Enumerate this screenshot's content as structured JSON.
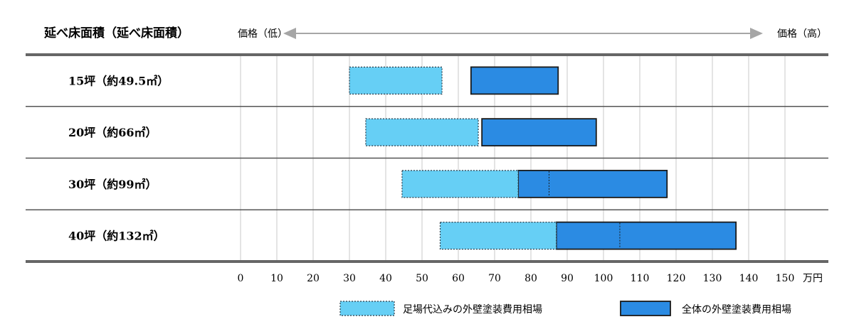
{
  "chart_data": {
    "type": "bar",
    "orientation": "horizontal-range",
    "header": {
      "row_title": "延べ床面積（延べ床面積）",
      "price_low": "価格（低）",
      "price_high": "価格（高）"
    },
    "x_unit": "万円",
    "xlim": [
      0,
      150
    ],
    "xticks": [
      0,
      10,
      20,
      30,
      40,
      50,
      60,
      70,
      80,
      90,
      100,
      110,
      120,
      130,
      140,
      150
    ],
    "grid": true,
    "legend_position": "bottom-right",
    "colors": {
      "scaffold_fill": "#66cff5",
      "total_fill": "#2b8be3",
      "border": "#1a1a1a",
      "rule": "#666666",
      "grid": "#c8c8c8",
      "arrow": "#a6a6a6"
    },
    "categories": [
      "15坪（約49.5㎡）",
      "20坪（約66㎡）",
      "30坪（約99㎡）",
      "40坪（約132㎡）"
    ],
    "series": [
      {
        "name": "足場代込みの外壁塗装費用相場",
        "style": "dotted-border",
        "ranges": [
          [
            30,
            55.5
          ],
          [
            34.5,
            65.5
          ],
          [
            44.5,
            76.5
          ],
          [
            55,
            87
          ]
        ]
      },
      {
        "name": "全体の外壁塗装費用相場",
        "style": "solid-border",
        "ranges": [
          [
            63.5,
            87.5
          ],
          [
            66.5,
            98
          ],
          [
            76.5,
            117.5
          ],
          [
            87,
            136.5
          ]
        ],
        "overlap_marker": [
          null,
          null,
          85,
          104.5
        ]
      }
    ]
  }
}
